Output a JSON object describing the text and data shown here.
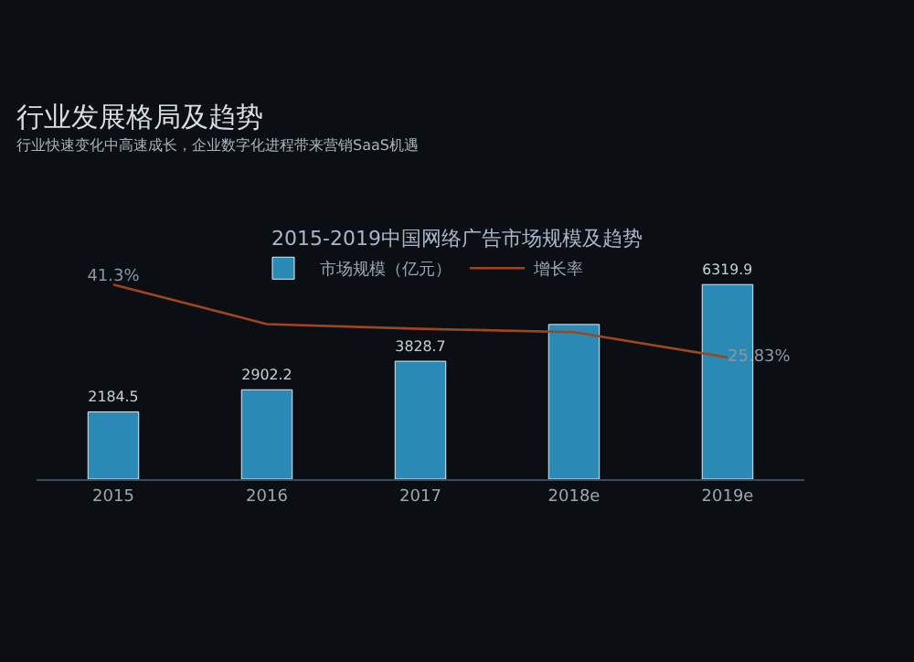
{
  "chart_data": {
    "type": "bar",
    "title": "2015-2019中国网络广告市场规模及趋势",
    "annotations": [
      "行业发展格局及趋势",
      "行业快速变化中高速成长，企业数字化进程带来营销SaaS机遇"
    ],
    "categories": [
      "2015",
      "2016",
      "2017",
      "2018e",
      "2019e"
    ],
    "series": [
      {
        "name": "市场规模（亿元）",
        "color": "#2a8ab5",
        "values": [
          2184.5,
          2902.2,
          3828.7,
          5023,
          6319.9
        ],
        "value_labels": [
          "2184.5",
          "2902.2",
          "3828.7",
          null,
          "6319.9"
        ]
      },
      {
        "name": "增长率",
        "type": "line",
        "axis": "y2",
        "color": "#a0461e",
        "values": [
          41.3,
          32.9,
          31.9,
          31.2,
          25.83
        ],
        "value_labels": [
          "41.3%",
          null,
          null,
          null,
          "25.83%"
        ],
        "marker": "none"
      }
    ],
    "tick_labels": "x",
    "grid": false,
    "legend": "top"
  }
}
